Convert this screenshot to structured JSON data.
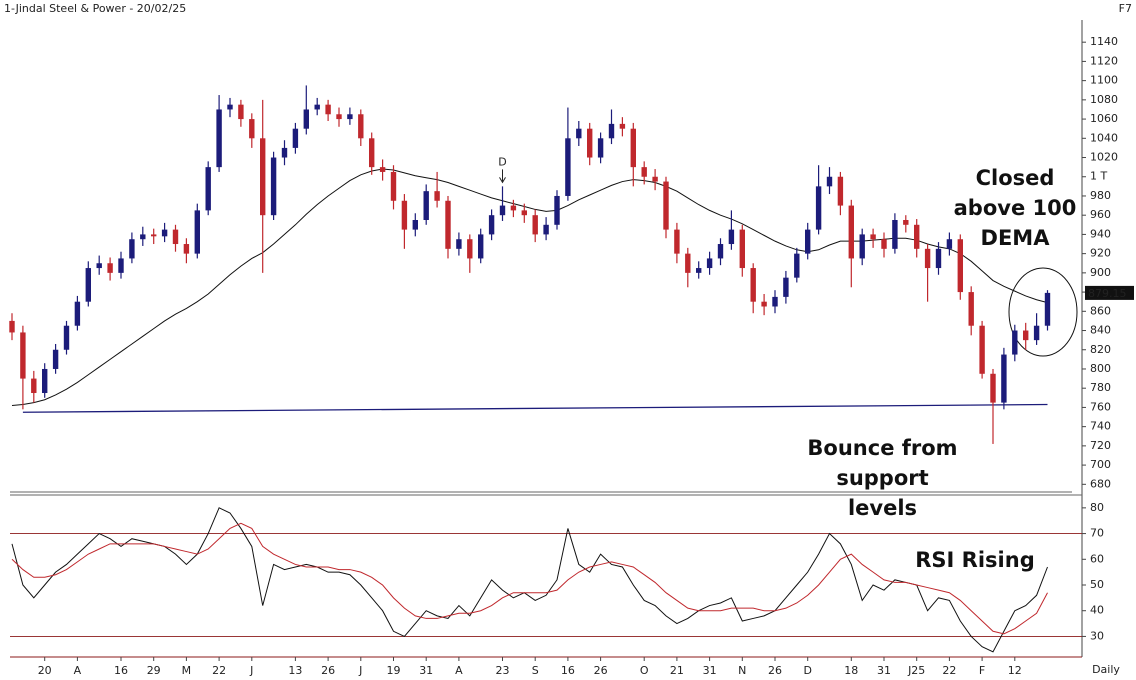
{
  "chart_data": [
    {
      "type": "candlestick",
      "title": "1-Jindal Steel & Power - 20/02/25",
      "corner_label": "F7",
      "interval": "Daily",
      "categories": [
        null,
        null,
        null,
        "20",
        null,
        null,
        "A",
        null,
        null,
        null,
        "16",
        null,
        null,
        "29",
        null,
        null,
        "M",
        null,
        null,
        "22",
        null,
        null,
        "J",
        null,
        null,
        null,
        "13",
        null,
        null,
        "26",
        null,
        null,
        "J",
        null,
        null,
        "19",
        null,
        null,
        "31",
        null,
        null,
        "A",
        null,
        null,
        null,
        "23",
        null,
        null,
        "S",
        null,
        null,
        "16",
        null,
        null,
        "26",
        null,
        null,
        null,
        "O",
        null,
        null,
        "21",
        null,
        null,
        "31",
        null,
        null,
        "N",
        null,
        null,
        "26",
        null,
        null,
        "D",
        null,
        null,
        null,
        "18",
        null,
        null,
        "31",
        null,
        null,
        "J25",
        null,
        null,
        "22",
        null,
        null,
        "F",
        null,
        null,
        "12",
        null,
        null,
        null
      ],
      "open": [
        850,
        838,
        790,
        775,
        800,
        820,
        845,
        870,
        905,
        910,
        900,
        915,
        935,
        940,
        938,
        945,
        930,
        920,
        965,
        1010,
        1070,
        1075,
        1060,
        1040,
        960,
        1020,
        1030,
        1050,
        1070,
        1075,
        1065,
        1060,
        1065,
        1040,
        1010,
        1005,
        975,
        945,
        955,
        985,
        975,
        925,
        935,
        915,
        940,
        960,
        970,
        965,
        960,
        940,
        950,
        980,
        1040,
        1050,
        1020,
        1040,
        1055,
        1050,
        1010,
        1000,
        995,
        945,
        920,
        900,
        905,
        915,
        930,
        945,
        905,
        870,
        865,
        875,
        895,
        920,
        945,
        990,
        1000,
        970,
        915,
        940,
        935,
        925,
        955,
        950,
        925,
        905,
        925,
        935,
        880,
        845,
        795,
        765,
        815,
        840,
        830,
        845
      ],
      "high": [
        858,
        845,
        798,
        806,
        826,
        850,
        876,
        912,
        918,
        916,
        922,
        942,
        948,
        946,
        952,
        950,
        936,
        972,
        1016,
        1085,
        1082,
        1080,
        1066,
        1080,
        1026,
        1038,
        1056,
        1095,
        1082,
        1080,
        1072,
        1072,
        1070,
        1046,
        1018,
        1012,
        982,
        962,
        992,
        1005,
        980,
        942,
        940,
        946,
        966,
        990,
        976,
        972,
        966,
        958,
        986,
        1072,
        1058,
        1056,
        1046,
        1070,
        1062,
        1056,
        1016,
        1008,
        1000,
        952,
        926,
        912,
        922,
        936,
        965,
        950,
        910,
        878,
        882,
        902,
        926,
        952,
        1012,
        1010,
        1005,
        976,
        946,
        946,
        942,
        962,
        960,
        956,
        930,
        932,
        942,
        940,
        886,
        850,
        800,
        822,
        846,
        848,
        858,
        882
      ],
      "low": [
        830,
        758,
        765,
        770,
        795,
        815,
        840,
        865,
        898,
        892,
        894,
        910,
        928,
        930,
        932,
        922,
        910,
        915,
        960,
        1005,
        1062,
        1052,
        1030,
        900,
        955,
        1012,
        1024,
        1044,
        1064,
        1058,
        1052,
        1054,
        1032,
        1002,
        996,
        966,
        925,
        938,
        950,
        968,
        915,
        918,
        900,
        910,
        934,
        954,
        958,
        952,
        932,
        934,
        945,
        975,
        1032,
        1012,
        1014,
        1034,
        1042,
        990,
        992,
        986,
        936,
        910,
        885,
        894,
        898,
        908,
        924,
        896,
        858,
        856,
        858,
        868,
        890,
        914,
        940,
        982,
        960,
        885,
        908,
        926,
        916,
        920,
        942,
        916,
        870,
        898,
        918,
        872,
        835,
        790,
        722,
        758,
        808,
        820,
        825,
        840
      ],
      "close": [
        838,
        790,
        775,
        800,
        820,
        845,
        870,
        905,
        910,
        900,
        915,
        935,
        940,
        938,
        945,
        930,
        920,
        965,
        1010,
        1070,
        1075,
        1060,
        1040,
        960,
        1020,
        1030,
        1050,
        1070,
        1075,
        1065,
        1060,
        1065,
        1040,
        1010,
        1005,
        975,
        945,
        955,
        985,
        975,
        925,
        935,
        915,
        940,
        960,
        970,
        965,
        960,
        940,
        950,
        980,
        1040,
        1050,
        1020,
        1040,
        1055,
        1050,
        1010,
        1000,
        995,
        945,
        920,
        900,
        905,
        915,
        930,
        945,
        905,
        870,
        865,
        875,
        895,
        920,
        945,
        990,
        1000,
        970,
        915,
        940,
        935,
        925,
        955,
        950,
        925,
        905,
        925,
        935,
        880,
        845,
        795,
        765,
        815,
        840,
        830,
        845,
        879.15
      ],
      "up_color": "#1c1c7a",
      "down_color": "#c0282d",
      "ma": {
        "color": "#111111",
        "values": [
          762,
          763,
          765,
          768,
          773,
          779,
          786,
          794,
          802,
          810,
          818,
          826,
          834,
          842,
          850,
          857,
          863,
          870,
          878,
          888,
          898,
          907,
          915,
          921,
          930,
          940,
          950,
          961,
          971,
          980,
          988,
          996,
          1002,
          1006,
          1008,
          1007,
          1004,
          1001,
          999,
          997,
          994,
          990,
          986,
          982,
          978,
          975,
          972,
          969,
          966,
          964,
          965,
          970,
          976,
          981,
          986,
          991,
          995,
          997,
          996,
          994,
          990,
          985,
          978,
          971,
          965,
          960,
          956,
          951,
          945,
          939,
          933,
          928,
          924,
          922,
          924,
          929,
          933,
          933,
          933,
          934,
          935,
          936,
          936,
          934,
          930,
          927,
          925,
          920,
          912,
          902,
          892,
          886,
          881,
          876,
          872,
          869
        ]
      },
      "support": {
        "color": "#1c1c7a",
        "x": [
          1,
          95
        ],
        "values": [
          755,
          763
        ]
      },
      "marker": "D",
      "last_price": 879.15,
      "annotations": [
        "Closed above 100 DEMA",
        "Bounce from support levels"
      ],
      "ylim": [
        672,
        1161
      ],
      "yticks": [
        680,
        700,
        720,
        740,
        760,
        780,
        800,
        820,
        840,
        860,
        880,
        900,
        920,
        940,
        960,
        980,
        {
          "value": 1000,
          "label": "1 T"
        },
        1020,
        1040,
        1060,
        1080,
        1100,
        1120,
        1140
      ]
    },
    {
      "type": "line",
      "annotation": "RSI Rising",
      "series": [
        {
          "color": "#111111",
          "values": [
            66,
            50,
            45,
            50,
            55,
            58,
            62,
            66,
            70,
            68,
            65,
            68,
            67,
            66,
            65,
            62,
            58,
            62,
            70,
            80,
            78,
            72,
            65,
            42,
            58,
            56,
            57,
            58,
            57,
            55,
            55,
            54,
            50,
            45,
            40,
            32,
            30,
            35,
            40,
            38,
            37,
            42,
            38,
            45,
            52,
            48,
            45,
            47,
            44,
            46,
            52,
            72,
            58,
            55,
            62,
            58,
            57,
            50,
            44,
            42,
            38,
            35,
            37,
            40,
            42,
            43,
            45,
            36,
            37,
            38,
            40,
            45,
            50,
            55,
            62,
            70,
            66,
            58,
            44,
            50,
            48,
            52,
            51,
            50,
            40,
            45,
            44,
            36,
            30,
            26,
            24,
            32,
            40,
            42,
            46,
            57
          ]
        },
        {
          "color": "#c0282d",
          "values": [
            60,
            56,
            53,
            53,
            54,
            56,
            59,
            62,
            64,
            66,
            66,
            66,
            66,
            66,
            65,
            64,
            63,
            62,
            64,
            68,
            72,
            74,
            72,
            65,
            62,
            60,
            58,
            57,
            57,
            57,
            56,
            56,
            55,
            53,
            50,
            45,
            41,
            38,
            37,
            37,
            38,
            39,
            39,
            40,
            42,
            45,
            47,
            47,
            47,
            47,
            48,
            52,
            55,
            57,
            58,
            59,
            58,
            57,
            54,
            51,
            47,
            44,
            41,
            40,
            40,
            40,
            41,
            41,
            41,
            40,
            40,
            41,
            43,
            46,
            50,
            55,
            60,
            62,
            58,
            55,
            52,
            51,
            51,
            50,
            49,
            48,
            47,
            44,
            40,
            36,
            32,
            31,
            33,
            36,
            39,
            47
          ]
        }
      ],
      "hlines": [
        70,
        30
      ],
      "ylim": [
        22,
        85
      ],
      "yticks": [
        30,
        40,
        50,
        60,
        70,
        80
      ]
    }
  ]
}
